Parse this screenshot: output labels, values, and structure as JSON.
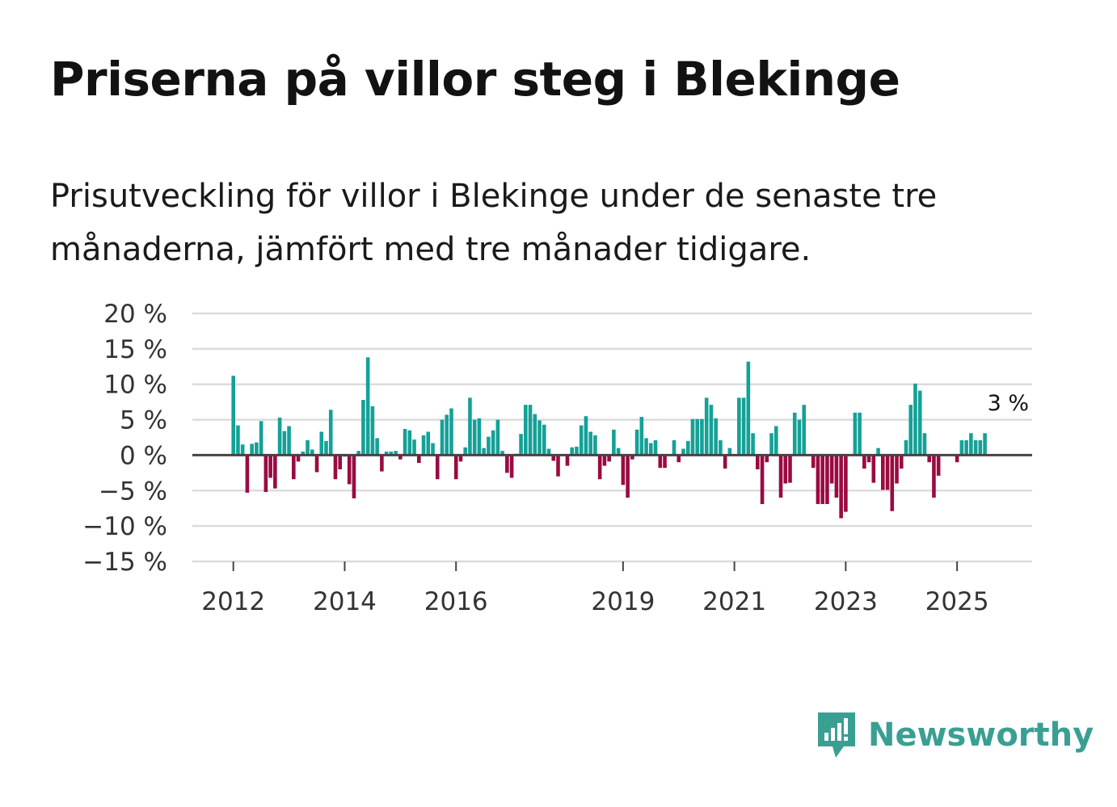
{
  "title": "Priserna på villor steg i Blekinge",
  "subtitle": "Prisutveckling för villor i Blekinge under de senaste tre månaderna, jämfört med tre månader tidigare.",
  "brand": {
    "name": "Newsworthy",
    "color": "#3a9f93",
    "icon": "newsworthy-logo-icon"
  },
  "colors": {
    "positive": "#14a197",
    "negative": "#9a0b41",
    "zero_line": "#444444",
    "grid": "#dcdcdc"
  },
  "chart_data": {
    "type": "bar",
    "title": "Priserna på villor steg i Blekinge",
    "xlabel": "",
    "ylabel": "",
    "ylim": [
      -15,
      20
    ],
    "yticks": [
      20,
      15,
      10,
      5,
      0,
      -5,
      -10,
      -15
    ],
    "ytick_labels": [
      "20 %",
      "15 %",
      "10 %",
      "5 %",
      "0 %",
      "−5 %",
      "−10 %",
      "−15 %"
    ],
    "xticks": [
      {
        "label": "2012",
        "index": 0
      },
      {
        "label": "2014",
        "index": 24
      },
      {
        "label": "2016",
        "index": 48
      },
      {
        "label": "2019",
        "index": 84
      },
      {
        "label": "2021",
        "index": 108
      },
      {
        "label": "2023",
        "index": 132
      },
      {
        "label": "2025",
        "index": 156
      }
    ],
    "start": "2012-01",
    "frequency": "monthly",
    "values": [
      11.2,
      4.2,
      1.5,
      -5.3,
      1.6,
      1.8,
      4.8,
      -5.2,
      -3.2,
      -4.7,
      5.3,
      3.4,
      4.1,
      -3.4,
      -0.9,
      0.5,
      2.1,
      0.8,
      -2.4,
      3.3,
      2.0,
      6.4,
      -3.4,
      -2.0,
      -0.2,
      -4.1,
      -6.1,
      0.6,
      7.8,
      13.8,
      6.9,
      2.4,
      -2.3,
      0.5,
      0.5,
      0.6,
      -0.6,
      3.7,
      3.5,
      2.2,
      -1.1,
      2.8,
      3.3,
      1.7,
      -3.4,
      5.0,
      5.7,
      6.6,
      -3.4,
      -0.9,
      1.1,
      8.1,
      5.0,
      5.2,
      1.0,
      2.6,
      3.5,
      5.0,
      0.6,
      -2.5,
      -3.2,
      0.2,
      3.0,
      7.1,
      7.1,
      5.8,
      4.9,
      4.3,
      0.9,
      -0.8,
      -3.0,
      0.1,
      -1.5,
      1.1,
      1.2,
      4.2,
      5.5,
      3.3,
      2.8,
      -3.4,
      -1.5,
      -0.9,
      3.6,
      1.0,
      -4.2,
      -6.0,
      -0.6,
      3.6,
      5.4,
      2.4,
      1.7,
      2.1,
      -1.8,
      -1.8,
      0.1,
      2.1,
      -1.0,
      0.9,
      2.0,
      5.1,
      5.1,
      5.1,
      8.1,
      7.1,
      5.2,
      2.1,
      -1.9,
      1.0,
      0.1,
      8.1,
      8.1,
      13.2,
      3.1,
      -2.0,
      -6.9,
      -1.0,
      3.1,
      4.1,
      -6.0,
      -4.0,
      -3.9,
      6.0,
      5.0,
      7.1,
      0.0,
      -1.8,
      -6.9,
      -6.9,
      -6.9,
      -4.0,
      -6.0,
      -8.9,
      -8.0,
      0.0,
      6.0,
      6.0,
      -1.9,
      -1.0,
      -3.9,
      1.0,
      -4.9,
      -4.9,
      -7.9,
      -4.0,
      -1.9,
      2.1,
      7.1,
      10.1,
      9.1,
      3.1,
      -1.0,
      -6.0,
      -2.9,
      0.0,
      0.0,
      0.0,
      -1.0,
      2.1,
      2.1,
      3.1,
      2.1,
      2.1,
      3.1
    ],
    "annotation": {
      "text": "3 %",
      "index": 167,
      "value": 3.1
    }
  }
}
